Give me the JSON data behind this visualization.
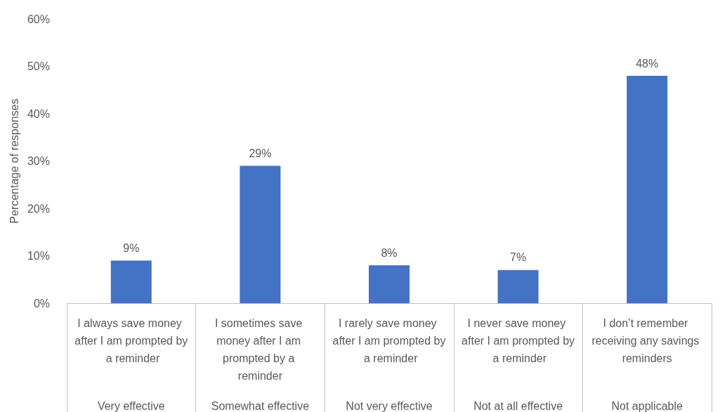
{
  "chart_data": {
    "type": "bar",
    "ylabel": "Percentage of responses",
    "categories": [
      "I always save money after I am prompted by a reminder",
      "I sometimes save money after I am prompted by a reminder",
      "I rarely save money after I am prompted by a reminder",
      "I never save money after I am prompted by a reminder",
      "I don’t remember receiving any savings reminders"
    ],
    "values": [
      9,
      29,
      8,
      7,
      48
    ],
    "value_labels": [
      "9%",
      "29%",
      "8%",
      "7%",
      "48%"
    ],
    "color": "#4472c4",
    "annotations": [
      "Very effective",
      "Somewhat effective",
      "Not very effective",
      "Not at all effective",
      "Not applicable"
    ],
    "ylim": [
      0,
      60
    ],
    "yticks": [
      {
        "value": 0,
        "label": "0%"
      },
      {
        "value": 10,
        "label": "10%"
      },
      {
        "value": 20,
        "label": "20%"
      },
      {
        "value": 30,
        "label": "30%"
      },
      {
        "value": 40,
        "label": "40%"
      },
      {
        "value": 50,
        "label": "50%"
      },
      {
        "value": 60,
        "label": "60%"
      }
    ],
    "grid": false
  }
}
